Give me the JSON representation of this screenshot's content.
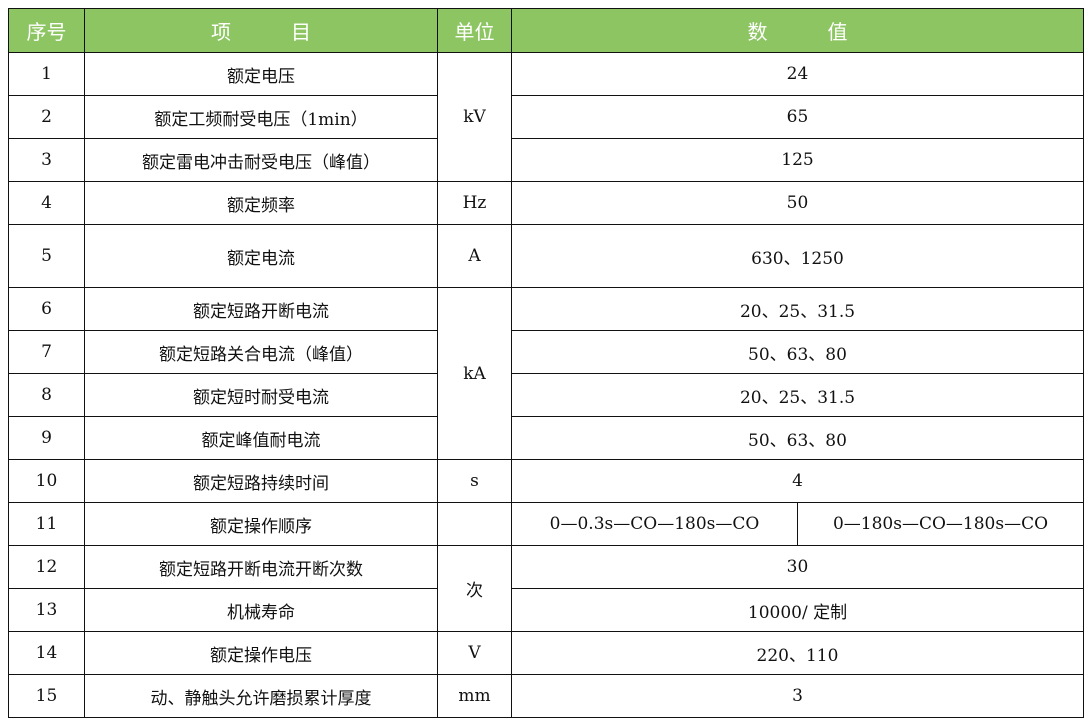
{
  "header": {
    "no": "序号",
    "item": "项　　　目",
    "unit": "单位",
    "value": "数　　　值"
  },
  "colors": {
    "header_bg": "#8dc563",
    "header_text": "#ffffff",
    "border": "#111111"
  },
  "rows": [
    {
      "no": "1",
      "item": "额定电压",
      "value": "24"
    },
    {
      "no": "2",
      "item": "额定工频耐受电压（1min）",
      "value": "65"
    },
    {
      "no": "3",
      "item": "额定雷电冲击耐受电压（峰值）",
      "value": "125"
    },
    {
      "no": "4",
      "item": "额定频率",
      "value": "50"
    },
    {
      "no": "5",
      "item": "额定电流",
      "value": "630、1250"
    },
    {
      "no": "6",
      "item": "额定短路开断电流",
      "value": "20、25、31.5"
    },
    {
      "no": "7",
      "item": "额定短路关合电流（峰值）",
      "value": "50、63、80"
    },
    {
      "no": "8",
      "item": "额定短时耐受电流",
      "value": "20、25、31.5"
    },
    {
      "no": "9",
      "item": "额定峰值耐电流",
      "value": "50、63、80"
    },
    {
      "no": "10",
      "item": "额定短路持续时间",
      "value": "4"
    },
    {
      "no": "11",
      "item": "额定操作顺序",
      "value": "0—0.3s—CO—180s—CO",
      "value2": "0—180s—CO—180s—CO"
    },
    {
      "no": "12",
      "item": "额定短路开断电流开断次数",
      "value": "30"
    },
    {
      "no": "13",
      "item": "机械寿命",
      "value": "10000/ 定制"
    },
    {
      "no": "14",
      "item": "额定操作电压",
      "value": "220、110"
    },
    {
      "no": "15",
      "item": "动、静触头允许磨损累计厚度",
      "value": "3"
    }
  ],
  "units": [
    {
      "label": "kV",
      "start": 1,
      "span": 3
    },
    {
      "label": "Hz",
      "start": 4,
      "span": 1
    },
    {
      "label": "A",
      "start": 5,
      "span": 1
    },
    {
      "label": "kA",
      "start": 6,
      "span": 4
    },
    {
      "label": "s",
      "start": 10,
      "span": 1
    },
    {
      "label": "",
      "start": 11,
      "span": 1
    },
    {
      "label": "次",
      "start": 12,
      "span": 2
    },
    {
      "label": "V",
      "start": 14,
      "span": 1
    },
    {
      "label": "mm",
      "start": 15,
      "span": 1
    }
  ]
}
